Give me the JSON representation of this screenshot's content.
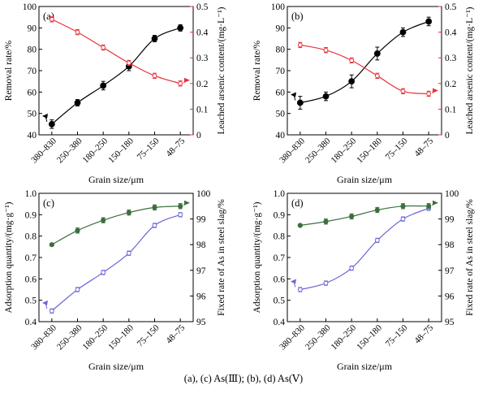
{
  "caption": "(a), (c) As(Ⅲ); (b), (d) As(Ⅴ)",
  "chart_data": [
    {
      "panel": "(a)",
      "type": "line",
      "categories": [
        "380–830",
        "250–380",
        "180–250",
        "150–180",
        "75–150",
        "48–75"
      ],
      "xlabel": "Grain size/μm",
      "left_axis": {
        "label": "Removal rate/%",
        "ylim": [
          40,
          100
        ],
        "ticks": [
          40,
          50,
          60,
          70,
          80,
          90,
          100
        ],
        "color": "#000000"
      },
      "right_axis": {
        "label": "Leached arsenic content/(mg·L⁻¹)",
        "ylim": [
          0,
          0.5
        ],
        "ticks": [
          0,
          0.1,
          0.2,
          0.3,
          0.4,
          0.5
        ],
        "color": "#e8303a"
      },
      "series": [
        {
          "axis": "left",
          "values": [
            45,
            55,
            63,
            72,
            85,
            90
          ],
          "errors": [
            2,
            1.5,
            2,
            2,
            1.5,
            1.5
          ],
          "color": "#000000",
          "marker": "filled-circle"
        },
        {
          "axis": "right",
          "values": [
            0.45,
            0.4,
            0.34,
            0.28,
            0.23,
            0.2
          ],
          "errors": [
            0.01,
            0.01,
            0.01,
            0.01,
            0.01,
            0.01
          ],
          "color": "#e8303a",
          "marker": "open-circle"
        }
      ]
    },
    {
      "panel": "(b)",
      "type": "line",
      "categories": [
        "380–830",
        "250–380",
        "180–250",
        "150–180",
        "75–150",
        "48–75"
      ],
      "xlabel": "Grain size/μm",
      "left_axis": {
        "label": "Removal rate/%",
        "ylim": [
          40,
          100
        ],
        "ticks": [
          40,
          50,
          60,
          70,
          80,
          90,
          100
        ],
        "color": "#000000"
      },
      "right_axis": {
        "label": "Leached arsenic content/(mg·L⁻¹)",
        "ylim": [
          0,
          0.5
        ],
        "ticks": [
          0,
          0.1,
          0.2,
          0.3,
          0.4,
          0.5
        ],
        "color": "#e8303a"
      },
      "series": [
        {
          "axis": "left",
          "values": [
            55,
            58,
            65,
            78,
            88,
            93
          ],
          "errors": [
            3,
            2,
            3,
            3,
            2,
            2
          ],
          "color": "#000000",
          "marker": "filled-circle"
        },
        {
          "axis": "right",
          "values": [
            0.35,
            0.33,
            0.29,
            0.23,
            0.17,
            0.16
          ],
          "errors": [
            0.01,
            0.01,
            0.01,
            0.01,
            0.01,
            0.01
          ],
          "color": "#e8303a",
          "marker": "open-circle"
        }
      ]
    },
    {
      "panel": "(c)",
      "type": "line",
      "categories": [
        "380–830",
        "250–380",
        "180–250",
        "150–180",
        "75–150",
        "48–75"
      ],
      "xlabel": "Grain size/μm",
      "left_axis": {
        "label": "Adsorption quantity/(mg·g⁻¹)",
        "ylim": [
          0.4,
          1.0
        ],
        "ticks": [
          0.4,
          0.5,
          0.6,
          0.7,
          0.8,
          0.9,
          1.0
        ],
        "color": "#000000"
      },
      "right_axis": {
        "label": "Fixed rate of As in steel slag/%",
        "ylim": [
          95,
          100
        ],
        "ticks": [
          95,
          96,
          97,
          98,
          99,
          100
        ],
        "color": "#000000"
      },
      "series": [
        {
          "axis": "left",
          "values": [
            0.45,
            0.55,
            0.63,
            0.72,
            0.85,
            0.9
          ],
          "errors": [
            0.01,
            0.01,
            0.01,
            0.01,
            0.01,
            0.01
          ],
          "color": "#6a67d4",
          "marker": "open-circle"
        },
        {
          "axis": "right",
          "values": [
            98.0,
            98.55,
            98.95,
            99.25,
            99.45,
            99.5
          ],
          "errors": [
            0.05,
            0.1,
            0.1,
            0.1,
            0.1,
            0.1
          ],
          "color": "#3e6e3e",
          "marker": "filled-circle"
        }
      ]
    },
    {
      "panel": "(d)",
      "type": "line",
      "categories": [
        "380–830",
        "250–380",
        "180–250",
        "150–180",
        "75–150",
        "48–75"
      ],
      "xlabel": "Grain size/μm",
      "left_axis": {
        "label": "Adsorption quantity/(mg·g⁻¹)",
        "ylim": [
          0.4,
          1.0
        ],
        "ticks": [
          0.4,
          0.5,
          0.6,
          0.7,
          0.8,
          0.9,
          1.0
        ],
        "color": "#000000"
      },
      "right_axis": {
        "label": "Fixed rate of As in steel slag/%",
        "ylim": [
          95,
          100
        ],
        "ticks": [
          95,
          96,
          97,
          98,
          99,
          100
        ],
        "color": "#000000"
      },
      "series": [
        {
          "axis": "left",
          "values": [
            0.55,
            0.58,
            0.65,
            0.78,
            0.88,
            0.93
          ],
          "errors": [
            0.01,
            0.01,
            0.01,
            0.01,
            0.01,
            0.01
          ],
          "color": "#6a67d4",
          "marker": "open-circle"
        },
        {
          "axis": "right",
          "values": [
            98.75,
            98.9,
            99.1,
            99.35,
            99.5,
            99.5
          ],
          "errors": [
            0.05,
            0.1,
            0.1,
            0.1,
            0.1,
            0.1
          ],
          "color": "#3e6e3e",
          "marker": "filled-circle"
        }
      ]
    }
  ]
}
